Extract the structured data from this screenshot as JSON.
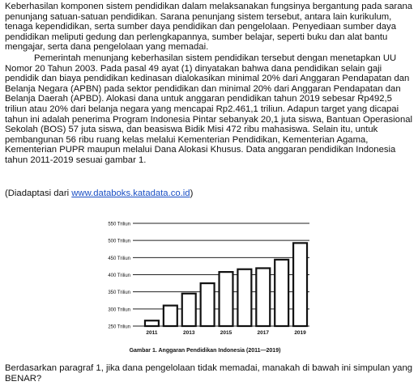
{
  "paragraphs": [
    "Keberhasilan komponen sistem pendidikan dalam melaksanakan fungsinya bergantung pada sarana penunjang satuan-satuan pendidikan. Sarana penunjang sistem tersebut, antara lain kurikulum, tenaga kependidikan, serta sumber daya pendidikan dan pengelolaan. Penyediaan sumber daya pendidikan meliputi gedung dan perlengkapannya, sumber belajar, seperti buku dan alat bantu mengajar, serta dana pengelolaan yang memadai.",
    "Pemerintah menunjang keberhasilan sistem pendidikan tersebut dengan menetapkan UU Nomor 20 Tahun 2003. Pada pasal 49 ayat (1) dinyatakan bahwa dana pendidikan selain gaji pendidik dan biaya pendidikan kedinasan dialokasikan minimal 20% dari Anggaran Pendapatan dan Belanja Negara (APBN) pada sektor pendidikan dan minimal 20% dari Anggaran Pendapatan dan Belanja Daerah (APBD). Alokasi dana untuk anggaran pendidikan tahun 2019 sebesar Rp492,5 triliun atau 20% dari belanja negara yang mencapai Rp2.461,1 triliun. Adapun target yang dicapai tahun ini adalah penerima Program Indonesia Pintar sebanyak 20,1 juta siswa, Bantuan Operasional Sekolah (BOS) 57 juta siswa, dan beasiswa Bidik Misi 472 ribu mahasiswa. Selain itu, untuk pembangunan 56 ribu ruang kelas melalui Kementerian Pendidikan, Kementerian Agama, Kementerian PUPR maupun melalui Dana Alokasi Khusus. Data anggaran pendidikan Indonesia tahun 2011-2019 sesuai gambar 1."
  ],
  "source": {
    "prefix": "(Diadaptasi dari ",
    "link_text": "www.databoks.katadata.co.id",
    "suffix": ")"
  },
  "question": "Berdasarkan paragraf 1, jika dana pengelolaan tidak memadai, manakah di bawah ini simpulan yang BENAR?",
  "chart_data": {
    "type": "bar",
    "title": "",
    "caption": "Gambar 1. Anggaran Pendidikan Indonesia (2011—2019)",
    "categories": [
      "2011",
      "2012",
      "2013",
      "2014",
      "2015",
      "2016",
      "2017",
      "2018",
      "2019"
    ],
    "values": [
      266,
      310,
      345,
      375,
      408,
      416,
      419,
      444,
      492.5
    ],
    "x_tick_labels": [
      "2011",
      "",
      "2013",
      "",
      "2015",
      "",
      "2017",
      "",
      "2019"
    ],
    "y_tick_labels": [
      "250 Triliun",
      "300 Triliun",
      "350 Triliun",
      "400 Triliun",
      "450 Triliun",
      "500 Triliun",
      "550 Triliun"
    ],
    "y_ticks": [
      250,
      300,
      350,
      400,
      450,
      500,
      550
    ],
    "ylim": [
      250,
      550
    ],
    "xlabel": "",
    "ylabel": "",
    "grid": true,
    "bar_color": "#ffffff",
    "bar_edge_color": "#111111",
    "grid_color": "#222222"
  }
}
